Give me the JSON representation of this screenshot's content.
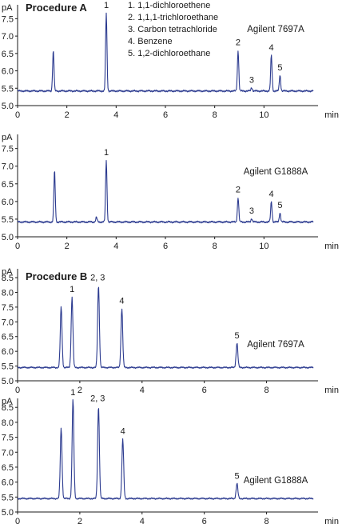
{
  "chart_data": [
    {
      "type": "line",
      "title": "Procedure A",
      "instrument": "Agilent 7697A",
      "ylabel": "pA",
      "xlabel": "min",
      "xlim": [
        0,
        12
      ],
      "ylim": [
        5.0,
        7.9
      ],
      "xticks": [
        0,
        2,
        4,
        6,
        8,
        10
      ],
      "yticks": [
        5.0,
        5.5,
        6.0,
        6.5,
        7.0,
        7.5
      ],
      "baseline": 5.42,
      "legend": [
        "1. 1,1-dichloroethene",
        "2. 1,1,1-trichloroethane",
        "3. Carbon tetrachloride",
        "4. Benzene",
        "5. 1,2-dichloroethane"
      ],
      "peaks": [
        {
          "x": 1.45,
          "y": 6.58,
          "label": ""
        },
        {
          "x": 3.6,
          "y": 7.67,
          "label": "1"
        },
        {
          "x": 8.95,
          "y": 6.6,
          "label": "2"
        },
        {
          "x": 9.5,
          "y": 5.52,
          "label": "3"
        },
        {
          "x": 10.3,
          "y": 6.45,
          "label": "4"
        },
        {
          "x": 10.65,
          "y": 5.87,
          "label": "5"
        }
      ]
    },
    {
      "type": "line",
      "title": "",
      "instrument": "Agilent G1888A",
      "ylabel": "pA",
      "xlabel": "min",
      "xlim": [
        0,
        12
      ],
      "ylim": [
        5.0,
        7.9
      ],
      "xticks": [
        0,
        2,
        4,
        6,
        8,
        10
      ],
      "yticks": [
        5.0,
        5.5,
        6.0,
        6.5,
        7.0,
        7.5
      ],
      "baseline": 5.42,
      "legend": [],
      "peaks": [
        {
          "x": 1.5,
          "y": 6.88,
          "label": ""
        },
        {
          "x": 3.2,
          "y": 5.55,
          "label": ""
        },
        {
          "x": 3.6,
          "y": 7.18,
          "label": "1"
        },
        {
          "x": 8.95,
          "y": 6.12,
          "label": "2"
        },
        {
          "x": 9.5,
          "y": 5.52,
          "label": "3"
        },
        {
          "x": 10.3,
          "y": 6.0,
          "label": "4"
        },
        {
          "x": 10.65,
          "y": 5.68,
          "label": "5"
        }
      ]
    },
    {
      "type": "line",
      "title": "Procedure B",
      "instrument": "Agilent 7697A",
      "ylabel": "pA",
      "xlabel": "min",
      "xlim": [
        0,
        9.5
      ],
      "ylim": [
        5.0,
        8.8
      ],
      "xticks": [
        0,
        2,
        4,
        6,
        8
      ],
      "yticks": [
        5.0,
        5.5,
        6.0,
        6.5,
        7.0,
        7.5,
        8.0,
        8.5
      ],
      "baseline": 5.45,
      "legend": [],
      "peaks": [
        {
          "x": 1.4,
          "y": 7.5,
          "label": ""
        },
        {
          "x": 1.75,
          "y": 7.85,
          "label": "1"
        },
        {
          "x": 2.6,
          "y": 8.25,
          "label": "2, 3"
        },
        {
          "x": 3.35,
          "y": 7.45,
          "label": "4"
        },
        {
          "x": 7.05,
          "y": 6.28,
          "label": "5"
        }
      ]
    },
    {
      "type": "line",
      "title": "",
      "instrument": "Agilent G1888A",
      "ylabel": "pA",
      "xlabel": "min",
      "xlim": [
        0,
        9.5
      ],
      "ylim": [
        5.0,
        8.8
      ],
      "xticks": [
        0,
        2,
        4,
        6,
        8
      ],
      "yticks": [
        5.0,
        5.5,
        6.0,
        6.5,
        7.0,
        7.5,
        8.0,
        8.5
      ],
      "baseline": 5.45,
      "legend": [],
      "peaks": [
        {
          "x": 1.4,
          "y": 7.8,
          "label": ""
        },
        {
          "x": 1.78,
          "y": 8.75,
          "label": "1"
        },
        {
          "x": 2.6,
          "y": 8.55,
          "label": "2, 3"
        },
        {
          "x": 3.38,
          "y": 7.45,
          "label": "4"
        },
        {
          "x": 7.05,
          "y": 5.95,
          "label": "5"
        }
      ]
    }
  ]
}
